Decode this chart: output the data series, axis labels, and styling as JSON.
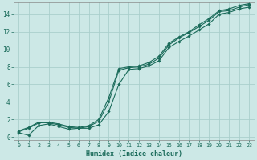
{
  "xlabel": "Humidex (Indice chaleur)",
  "bg_color": "#cce8e6",
  "line_color": "#1a6b5a",
  "grid_color": "#aacfcc",
  "xlim": [
    -0.5,
    23.5
  ],
  "ylim": [
    -0.3,
    15.3
  ],
  "xticks": [
    0,
    1,
    2,
    3,
    4,
    5,
    6,
    7,
    8,
    9,
    10,
    11,
    12,
    13,
    14,
    15,
    16,
    17,
    18,
    19,
    20,
    21,
    22,
    23
  ],
  "yticks": [
    0,
    2,
    4,
    6,
    8,
    10,
    12,
    14
  ],
  "line1_x": [
    0,
    1,
    2,
    3,
    4,
    5,
    6,
    7,
    8,
    9,
    10,
    11,
    12,
    13,
    14,
    15,
    16,
    17,
    18,
    19,
    20,
    21,
    22,
    23
  ],
  "line1_y": [
    0.7,
    1.1,
    1.7,
    1.6,
    1.4,
    1.1,
    1.0,
    1.2,
    1.8,
    4.0,
    7.6,
    7.9,
    8.0,
    8.3,
    9.0,
    10.5,
    11.3,
    11.9,
    12.6,
    13.3,
    14.3,
    14.4,
    14.8,
    15.1
  ],
  "line2_x": [
    0,
    1,
    2,
    3,
    4,
    5,
    6,
    7,
    8,
    9,
    10,
    11,
    12,
    13,
    14,
    15,
    16,
    17,
    18,
    19,
    20,
    21,
    22,
    23
  ],
  "line2_y": [
    0.6,
    1.0,
    1.6,
    1.7,
    1.5,
    1.2,
    1.1,
    1.3,
    2.0,
    4.5,
    7.8,
    8.0,
    8.1,
    8.5,
    9.2,
    10.7,
    11.4,
    12.0,
    12.8,
    13.5,
    14.4,
    14.6,
    15.0,
    15.2
  ],
  "line3_x": [
    0,
    1,
    2,
    3,
    4,
    5,
    6,
    7,
    8,
    9,
    10,
    11,
    12,
    13,
    14,
    15,
    16,
    17,
    18,
    19,
    20,
    21,
    22,
    23
  ],
  "line3_y": [
    0.5,
    0.2,
    1.3,
    1.5,
    1.2,
    0.9,
    1.0,
    1.0,
    1.4,
    2.9,
    6.0,
    7.7,
    7.8,
    8.1,
    8.7,
    10.2,
    10.9,
    11.5,
    12.2,
    12.9,
    14.0,
    14.2,
    14.6,
    14.8
  ]
}
